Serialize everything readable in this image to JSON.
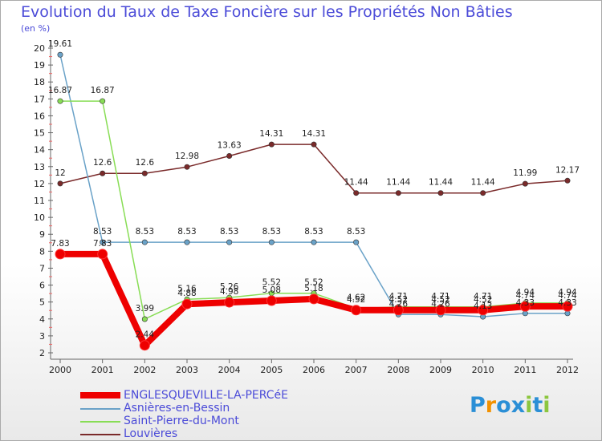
{
  "title": "Evolution du Taux de Taxe Foncière sur les Propriétés Non Bâties",
  "unit_label": "(en %)",
  "logo": {
    "text": "Proxiti",
    "letters": [
      "P",
      "r",
      "o",
      "x",
      "i",
      "t",
      "i"
    ],
    "colors": [
      "#2b8fd6",
      "#f29100",
      "#2b8fd6",
      "#2b8fd6",
      "#8cc63f",
      "#2b8fd6",
      "#8cc63f"
    ]
  },
  "chart_data": {
    "type": "line",
    "title": "Evolution du Taux de Taxe Foncière sur les Propriétés Non Bâties",
    "ylabel": "(en %)",
    "xlabel": "",
    "categories": [
      "2000",
      "2001",
      "2002",
      "2003",
      "2004",
      "2005",
      "2006",
      "2007",
      "2008",
      "2009",
      "2010",
      "2011",
      "2012"
    ],
    "ylim": [
      2,
      20
    ],
    "yticks": [
      2,
      3,
      4,
      5,
      6,
      7,
      8,
      9,
      10,
      11,
      12,
      13,
      14,
      15,
      16,
      17,
      18,
      19,
      20
    ],
    "grid": false,
    "legend_position": "bottom-left",
    "series": [
      {
        "name": "ENGLESQUEVILLE-LA-PERCéE",
        "color": "#ee0000",
        "values": [
          7.83,
          7.83,
          2.44,
          4.88,
          4.98,
          5.08,
          5.18,
          4.52,
          4.52,
          4.52,
          4.52,
          4.74,
          4.74
        ],
        "labels": [
          "7.83",
          "7.83",
          "2.44",
          "4.88",
          "4.98",
          "5.08",
          "5.18",
          "4.52",
          "4.52",
          "4.52",
          "4.52",
          "4.74",
          "4.74"
        ],
        "emphasis": true
      },
      {
        "name": "Asnières-en-Bessin",
        "color": "#6aa2c8",
        "values": [
          19.61,
          8.53,
          8.53,
          8.53,
          8.53,
          8.53,
          8.53,
          8.53,
          4.26,
          4.26,
          4.13,
          4.33,
          4.33
        ],
        "labels": [
          "19.61",
          "8.53",
          "8.53",
          "8.53",
          "8.53",
          "8.53",
          "8.53",
          "8.53",
          "4.26",
          "4.26",
          "4.13",
          "4.33",
          "4.33"
        ]
      },
      {
        "name": "Saint-Pierre-du-Mont",
        "color": "#88dd55",
        "values": [
          16.87,
          16.87,
          3.99,
          5.16,
          5.26,
          5.52,
          5.52,
          4.62,
          4.71,
          4.71,
          4.71,
          4.94,
          4.94
        ],
        "labels": [
          "16.87",
          "16.87",
          "3.99",
          "5.16",
          "5.26",
          "5.52",
          "5.52",
          "4.62",
          "4.71",
          "4.71",
          "4.71",
          "4.94",
          "4.94"
        ]
      },
      {
        "name": "Louvières",
        "color": "#7a2a2a",
        "values": [
          12,
          12.6,
          12.6,
          12.98,
          13.63,
          14.31,
          14.31,
          11.44,
          11.44,
          11.44,
          11.44,
          11.99,
          12.17
        ],
        "labels": [
          "12",
          "12.6",
          "12.6",
          "12.98",
          "13.63",
          "14.31",
          "14.31",
          "11.44",
          "11.44",
          "11.44",
          "11.44",
          "11.99",
          "12.17"
        ]
      }
    ]
  }
}
